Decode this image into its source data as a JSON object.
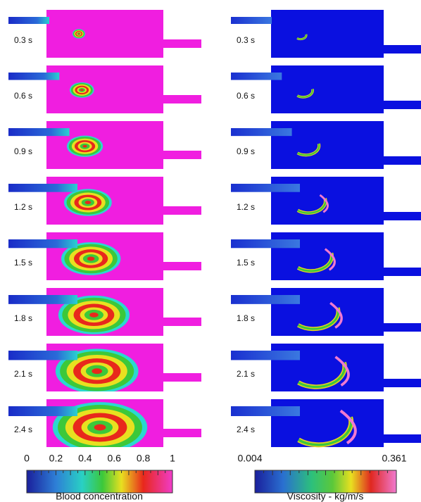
{
  "left_column": {
    "labels": [
      "0.3 s",
      "0.6 s",
      "0.9 s",
      "1.2 s",
      "1.5 s",
      "1.8 s",
      "2.1 s",
      "2.4 s"
    ]
  },
  "right_column": {
    "labels": [
      "0.3 s",
      "0.6 s",
      "0.9 s",
      "1.2 s",
      "1.5 s",
      "1.8 s",
      "2.1 s",
      "2.4 s"
    ]
  },
  "left_colorbar": {
    "ticks": [
      "0",
      "0.2",
      "0.4",
      "0.6",
      "0.8",
      "1"
    ],
    "label": "Blood concentration"
  },
  "right_colorbar": {
    "min": "0.004",
    "max": "0.361",
    "label": "Viscosity - kg/m/s"
  }
}
